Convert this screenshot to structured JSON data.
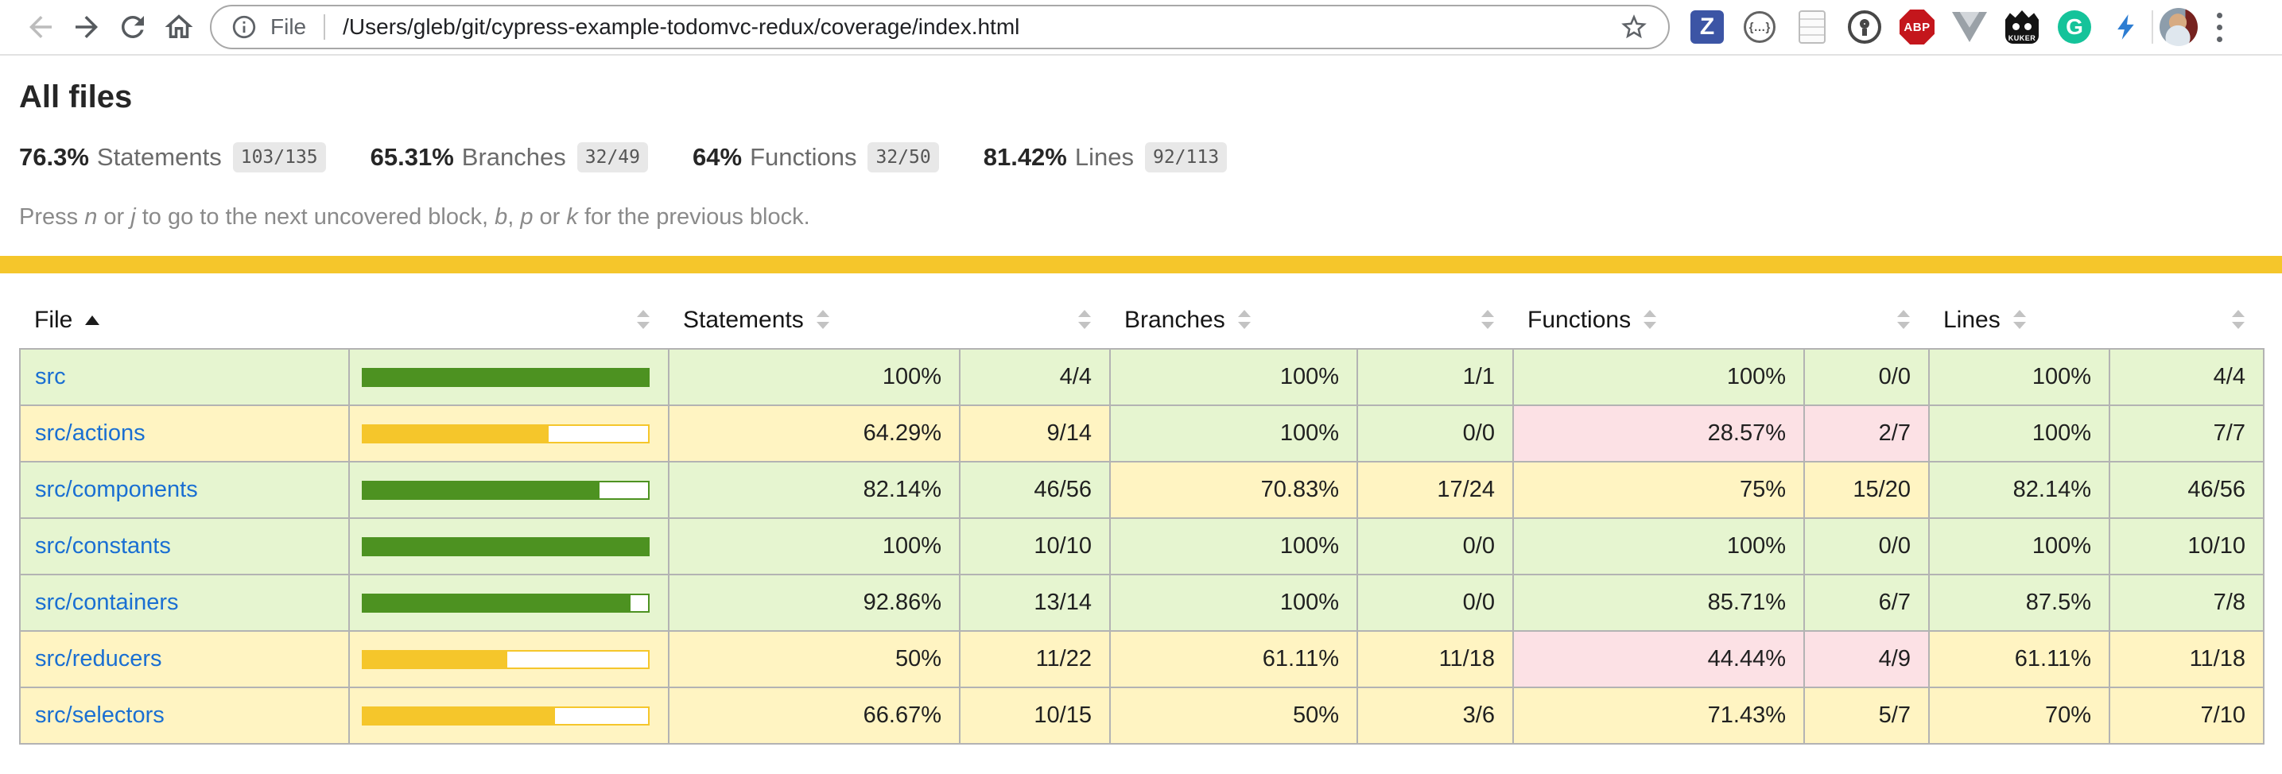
{
  "browser": {
    "address": {
      "scheme_label": "File",
      "url": "/Users/gleb/git/cypress-example-todomvc-redux/coverage/index.html"
    },
    "extensions": {
      "zotero": {
        "label": "Z"
      },
      "json_viewer": {
        "label": "{…}"
      },
      "adblock": {
        "label": "ABP"
      },
      "kuker": {
        "label": "KUKER"
      },
      "grammarly": {
        "label": "G"
      }
    }
  },
  "coverage": {
    "title": "All files",
    "metrics": [
      {
        "pct": "76.3%",
        "label": "Statements",
        "fraction": "103/135"
      },
      {
        "pct": "65.31%",
        "label": "Branches",
        "fraction": "32/49"
      },
      {
        "pct": "64%",
        "label": "Functions",
        "fraction": "32/50"
      },
      {
        "pct": "81.42%",
        "label": "Lines",
        "fraction": "92/113"
      }
    ],
    "hint": [
      {
        "t": "Press "
      },
      {
        "t": "n",
        "i": true
      },
      {
        "t": " or "
      },
      {
        "t": "j",
        "i": true
      },
      {
        "t": " to go to the next uncovered block, "
      },
      {
        "t": "b",
        "i": true
      },
      {
        "t": ", "
      },
      {
        "t": "p",
        "i": true
      },
      {
        "t": " or "
      },
      {
        "t": "k",
        "i": true
      },
      {
        "t": " for the previous block."
      }
    ]
  },
  "table": {
    "sort": {
      "column": "File",
      "direction": "ascending"
    },
    "columns": [
      {
        "label": "File"
      },
      {
        "label": ""
      },
      {
        "label": "Statements"
      },
      {
        "label": ""
      },
      {
        "label": "Branches"
      },
      {
        "label": ""
      },
      {
        "label": "Functions"
      },
      {
        "label": ""
      },
      {
        "label": "Lines"
      },
      {
        "label": ""
      }
    ],
    "rows": [
      {
        "file": "src",
        "level": "high",
        "statements": {
          "pct": "100%",
          "raw": "4/4",
          "level": "high"
        },
        "branches": {
          "pct": "100%",
          "raw": "1/1",
          "level": "high"
        },
        "functions": {
          "pct": "100%",
          "raw": "0/0",
          "level": "high"
        },
        "lines": {
          "pct": "100%",
          "raw": "4/4",
          "level": "high"
        }
      },
      {
        "file": "src/actions",
        "level": "medium",
        "statements": {
          "pct": "64.29%",
          "raw": "9/14",
          "level": "medium"
        },
        "branches": {
          "pct": "100%",
          "raw": "0/0",
          "level": "high"
        },
        "functions": {
          "pct": "28.57%",
          "raw": "2/7",
          "level": "low"
        },
        "lines": {
          "pct": "100%",
          "raw": "7/7",
          "level": "high"
        }
      },
      {
        "file": "src/components",
        "level": "high",
        "statements": {
          "pct": "82.14%",
          "raw": "46/56",
          "level": "high"
        },
        "branches": {
          "pct": "70.83%",
          "raw": "17/24",
          "level": "medium"
        },
        "functions": {
          "pct": "75%",
          "raw": "15/20",
          "level": "medium"
        },
        "lines": {
          "pct": "82.14%",
          "raw": "46/56",
          "level": "high"
        }
      },
      {
        "file": "src/constants",
        "level": "high",
        "statements": {
          "pct": "100%",
          "raw": "10/10",
          "level": "high"
        },
        "branches": {
          "pct": "100%",
          "raw": "0/0",
          "level": "high"
        },
        "functions": {
          "pct": "100%",
          "raw": "0/0",
          "level": "high"
        },
        "lines": {
          "pct": "100%",
          "raw": "10/10",
          "level": "high"
        }
      },
      {
        "file": "src/containers",
        "level": "high",
        "statements": {
          "pct": "92.86%",
          "raw": "13/14",
          "level": "high"
        },
        "branches": {
          "pct": "100%",
          "raw": "0/0",
          "level": "high"
        },
        "functions": {
          "pct": "85.71%",
          "raw": "6/7",
          "level": "high"
        },
        "lines": {
          "pct": "87.5%",
          "raw": "7/8",
          "level": "high"
        }
      },
      {
        "file": "src/reducers",
        "level": "medium",
        "statements": {
          "pct": "50%",
          "raw": "11/22",
          "level": "medium"
        },
        "branches": {
          "pct": "61.11%",
          "raw": "11/18",
          "level": "medium"
        },
        "functions": {
          "pct": "44.44%",
          "raw": "4/9",
          "level": "low"
        },
        "lines": {
          "pct": "61.11%",
          "raw": "11/18",
          "level": "medium"
        }
      },
      {
        "file": "src/selectors",
        "level": "medium",
        "statements": {
          "pct": "66.67%",
          "raw": "10/15",
          "level": "medium"
        },
        "branches": {
          "pct": "50%",
          "raw": "3/6",
          "level": "medium"
        },
        "functions": {
          "pct": "71.43%",
          "raw": "5/7",
          "level": "medium"
        },
        "lines": {
          "pct": "70%",
          "raw": "7/10",
          "level": "medium"
        }
      }
    ]
  },
  "colors": {
    "high_bg": "#e6f5d0",
    "medium_bg": "#fff4c2",
    "low_bg": "#fce1e5",
    "green_fill": "#4d9221",
    "yellow_fill": "#f5c62b",
    "banner": "#f5c62b",
    "link": "#1a6fd2"
  }
}
